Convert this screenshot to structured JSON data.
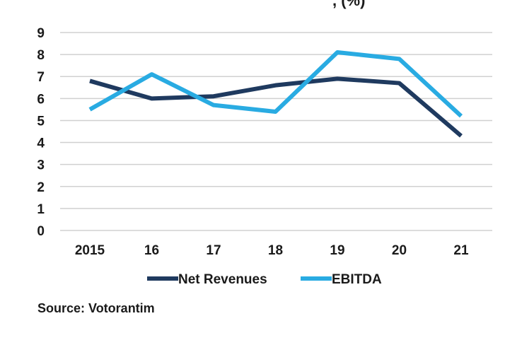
{
  "chart_data": {
    "type": "line",
    "title": ", (%)",
    "categories": [
      "2015",
      "16",
      "17",
      "18",
      "19",
      "20",
      "21"
    ],
    "ylim": [
      0,
      9
    ],
    "yticks": [
      0,
      1,
      2,
      3,
      4,
      5,
      6,
      7,
      8,
      9
    ],
    "grid": true,
    "legend_position": "bottom",
    "series": [
      {
        "name": "Net Revenues",
        "color": "#1f3a5f",
        "values": [
          6.8,
          6.0,
          6.1,
          6.6,
          6.9,
          6.7,
          4.3
        ]
      },
      {
        "name": "EBITDA",
        "color": "#29abe2",
        "values": [
          5.5,
          7.1,
          5.7,
          5.4,
          8.1,
          7.8,
          5.2
        ]
      }
    ]
  },
  "source": "Source: Votorantim"
}
